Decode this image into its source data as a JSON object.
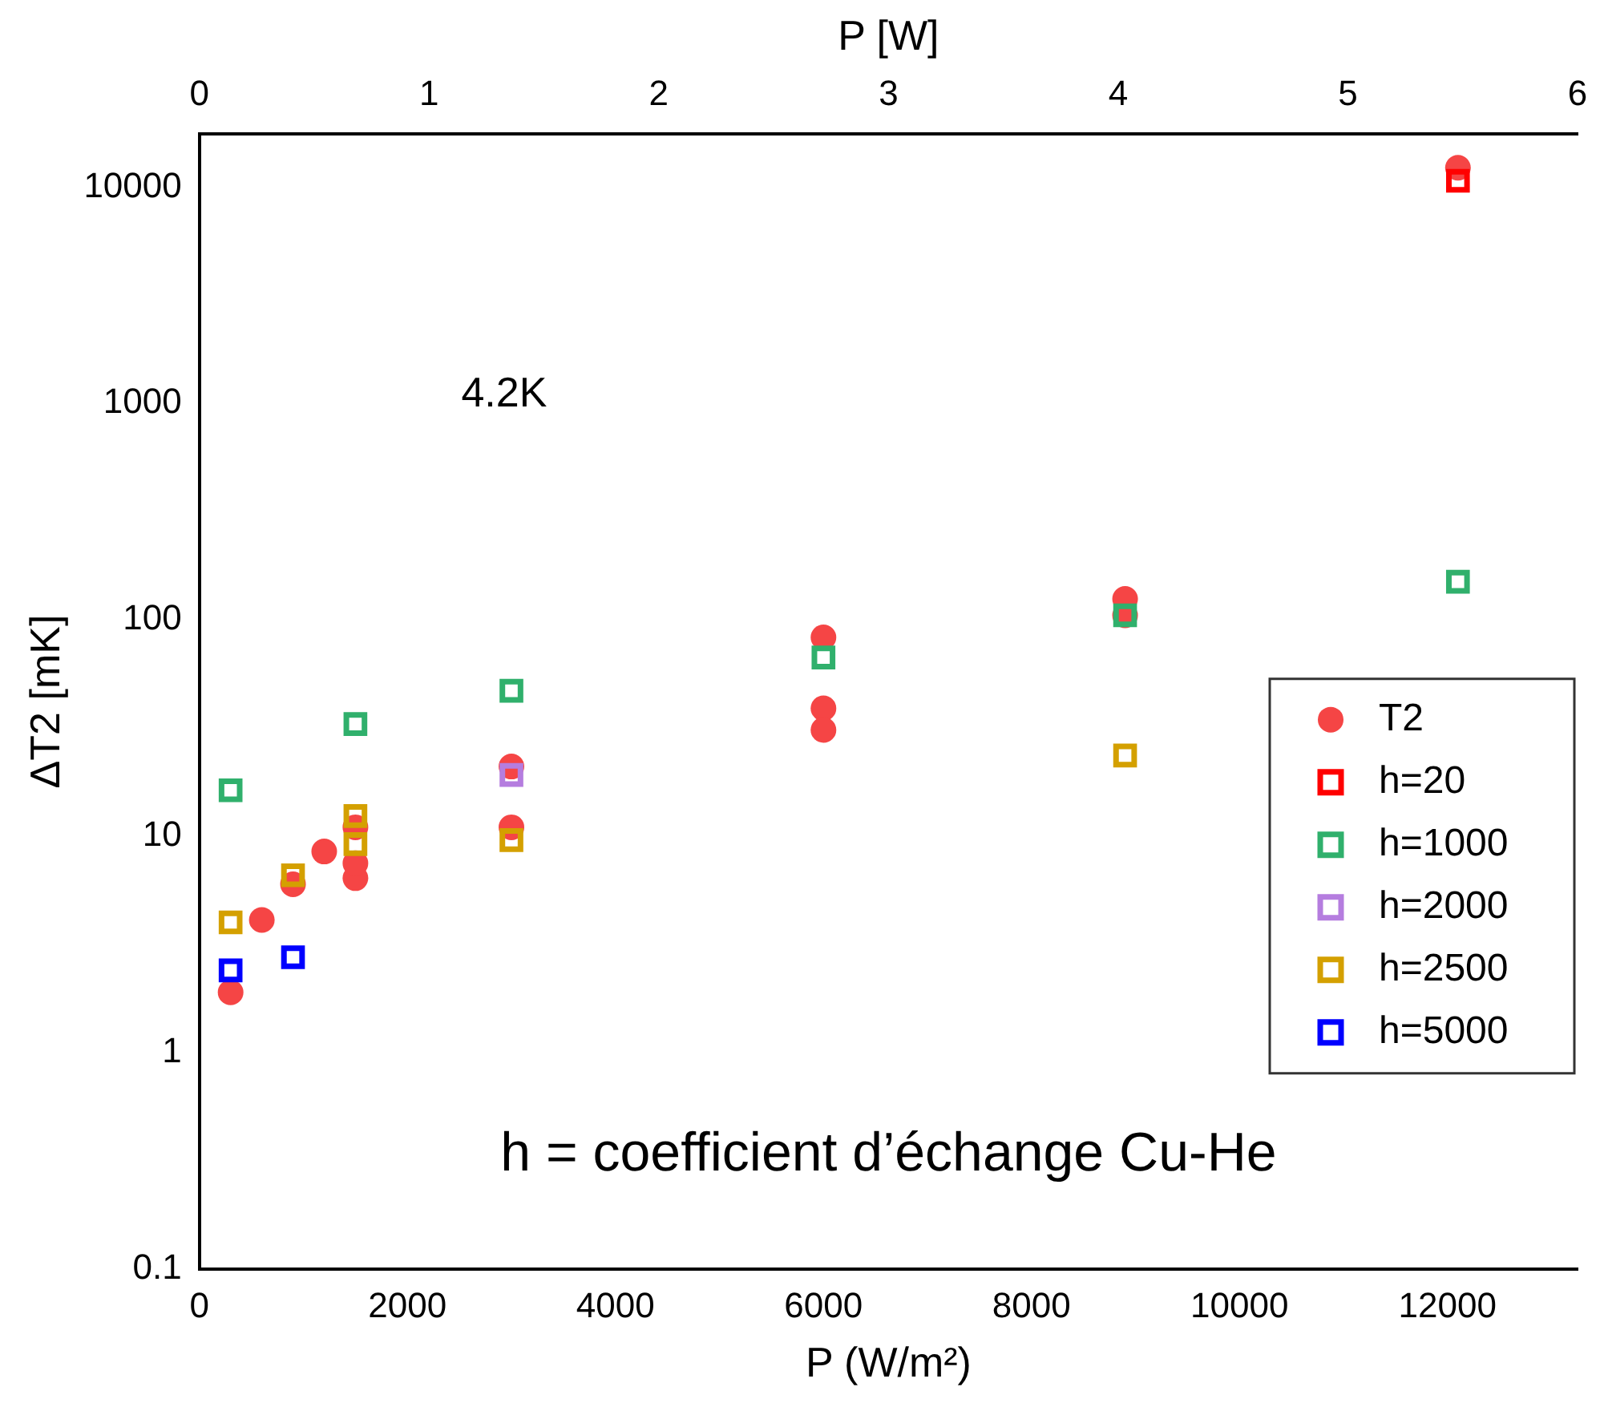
{
  "chart_data": {
    "type": "scatter",
    "xlabel": "P (W/m²)",
    "ylabel": "ΔT2 [mK]",
    "x2label": "P [W]",
    "xlim": [
      0,
      13250
    ],
    "xticks": [
      0,
      2000,
      4000,
      6000,
      8000,
      10000,
      12000
    ],
    "x2lim": [
      0,
      6
    ],
    "x2ticks": [
      0,
      1,
      2,
      3,
      4,
      5,
      6
    ],
    "ylim": [
      0.1,
      17600
    ],
    "yticks": [
      0.1,
      1,
      10,
      100,
      1000,
      10000
    ],
    "log": "y",
    "legend": "right",
    "grid": false,
    "annotations": [
      "4.2K",
      "h = coefficient d’échange Cu-He"
    ],
    "series": [
      {
        "name": "T2",
        "color": "#f54545",
        "marker": "circle",
        "x": [
          300,
          600,
          900,
          1200,
          1500,
          1500,
          1500,
          3000,
          3000,
          6000,
          6000,
          6000,
          8900,
          8900,
          12100
        ],
        "values": [
          1.9,
          4.1,
          6.0,
          8.5,
          6.4,
          7.5,
          11,
          21,
          11,
          83,
          39,
          31,
          125,
          105,
          12300
        ]
      },
      {
        "name": "h=20",
        "color": "#ff0000",
        "marker": "square",
        "x": [
          12100
        ],
        "values": [
          10700
        ]
      },
      {
        "name": "h=1000",
        "color": "#30b06c",
        "marker": "square",
        "x": [
          300,
          1500,
          3000,
          6000,
          8900,
          12100
        ],
        "values": [
          16.3,
          33,
          47,
          67,
          105,
          150
        ]
      },
      {
        "name": "h=2000",
        "color": "#b57ddf",
        "marker": "square",
        "x": [
          3000
        ],
        "values": [
          19.2
        ]
      },
      {
        "name": "h=2500",
        "color": "#d4a000",
        "marker": "square",
        "x": [
          300,
          900,
          1500,
          1500,
          3000,
          8900
        ],
        "values": [
          4.0,
          6.6,
          12.4,
          9.2,
          9.6,
          23.6
        ]
      },
      {
        "name": "h=5000",
        "color": "#0000ff",
        "marker": "square",
        "x": [
          300,
          900
        ],
        "values": [
          2.4,
          2.76
        ]
      }
    ]
  }
}
